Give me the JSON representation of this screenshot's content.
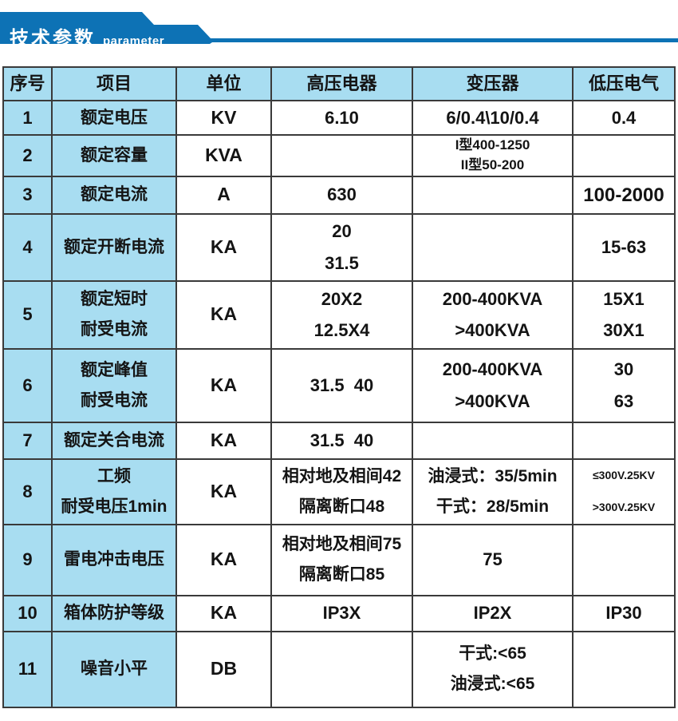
{
  "banner": {
    "title": "技术参数",
    "subtitle": "parameter"
  },
  "colors": {
    "banner_blue": "#0d72b5",
    "cell_blue": "#a8ddf1",
    "grid_line": "#3a3a3a",
    "text": "#141414"
  },
  "table": {
    "headers": [
      {
        "key": "no",
        "label": "序号"
      },
      {
        "key": "item",
        "label": "项目"
      },
      {
        "key": "unit",
        "label": "单位"
      },
      {
        "key": "hv",
        "label": "高压电器"
      },
      {
        "key": "tx",
        "label": "变压器"
      },
      {
        "key": "lv",
        "label": "低压电气"
      }
    ],
    "rows": [
      {
        "no": "1",
        "item": "额定电压",
        "unit": "KV",
        "hv": "6.10",
        "tx": "6/0.4\\10/0.4",
        "lv": "0.4"
      },
      {
        "no": "2",
        "item": "额定容量",
        "unit": "KVA",
        "hv": "",
        "tx": "I型400-1250\nII型50-200",
        "lv": ""
      },
      {
        "no": "3",
        "item": "额定电流",
        "unit": "A",
        "hv": "630",
        "tx": "",
        "lv": "100-2000"
      },
      {
        "no": "4",
        "item": "额定开断电流",
        "unit": "KA",
        "hv": "20\n31.5",
        "tx": "",
        "lv": "15-63"
      },
      {
        "no": "5",
        "item": "额定短时\n耐受电流",
        "unit": "KA",
        "hv": "20X2\n12.5X4",
        "tx": "200-400KVA\n>400KVA",
        "lv": "15X1\n30X1"
      },
      {
        "no": "6",
        "item": "额定峰值\n耐受电流",
        "unit": "KA",
        "hv": "31.5  40",
        "tx": "200-400KVA\n>400KVA",
        "lv": "30\n63"
      },
      {
        "no": "7",
        "item": "额定关合电流",
        "unit": "KA",
        "hv": "31.5  40",
        "tx": "",
        "lv": ""
      },
      {
        "no": "8",
        "item": "工频\n耐受电压1min",
        "unit": "KA",
        "hv": "相对地及相间42\n隔离断口48",
        "tx": "油浸式：35/5min\n干式：28/5min",
        "lv": "≤300V.25KV\n>300V.25KV"
      },
      {
        "no": "9",
        "item": "雷电冲击电压",
        "unit": "KA",
        "hv": "相对地及相间75\n隔离断口85",
        "tx": "75",
        "lv": ""
      },
      {
        "no": "10",
        "item": "箱体防护等级",
        "unit": "KA",
        "hv": "IP3X",
        "tx": "IP2X",
        "lv": "IP30"
      },
      {
        "no": "11",
        "item": "噪音小平",
        "unit": "DB",
        "hv": "",
        "tx": "干式:<65\n油浸式:<65",
        "lv": ""
      }
    ]
  }
}
